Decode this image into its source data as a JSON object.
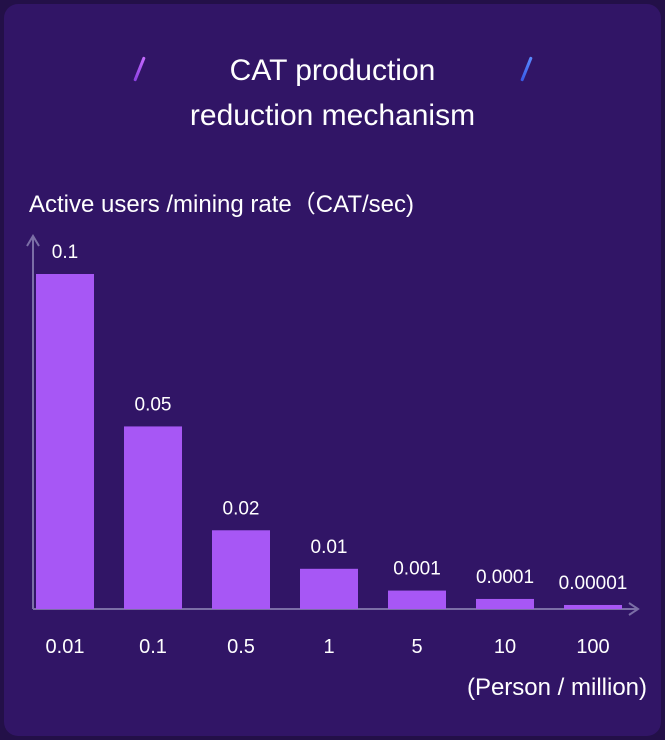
{
  "chart_data": {
    "type": "bar",
    "title": "CAT production reduction mechanism",
    "ylabel": "Active users /mining rate（CAT/sec)",
    "xlabel": "(Person / million)",
    "categories": [
      "0.01",
      "0.1",
      "0.5",
      "1",
      "5",
      "10",
      "100"
    ],
    "values": [
      0.1,
      0.05,
      0.02,
      0.01,
      0.001,
      0.0001,
      1e-05
    ],
    "value_labels": [
      "0.1",
      "0.05",
      "0.02",
      "0.01",
      "0.001",
      "0.0001",
      "0.00001"
    ],
    "display_levels": [
      1.0,
      0.545,
      0.235,
      0.12,
      0.055,
      0.03,
      0.012
    ],
    "bar_color": "#a757f5",
    "axis_color": "#7b6ea6",
    "grid": false
  },
  "header": {
    "title_line1": "CAT production",
    "title_line2": "reduction mechanism"
  }
}
